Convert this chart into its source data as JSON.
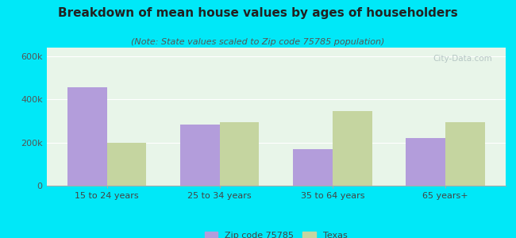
{
  "title": "Breakdown of mean house values by ages of householders",
  "subtitle": "(Note: State values scaled to Zip code 75785 population)",
  "categories": [
    "15 to 24 years",
    "25 to 34 years",
    "35 to 64 years",
    "65 years+"
  ],
  "zip_values": [
    455000,
    285000,
    170000,
    220000
  ],
  "texas_values": [
    200000,
    295000,
    345000,
    295000
  ],
  "zip_color": "#b39ddb",
  "texas_color": "#c5d5a0",
  "background_outer": "#00e8f8",
  "background_inner_top": "#e8f5e9",
  "bar_width": 0.35,
  "ylim": [
    0,
    640000
  ],
  "yticks": [
    0,
    200000,
    400000,
    600000
  ],
  "ytick_labels": [
    "0",
    "200k",
    "400k",
    "600k"
  ],
  "legend_zip_label": "Zip code 75785",
  "legend_texas_label": "Texas",
  "title_fontsize": 11,
  "subtitle_fontsize": 8,
  "tick_fontsize": 8,
  "legend_fontsize": 8
}
